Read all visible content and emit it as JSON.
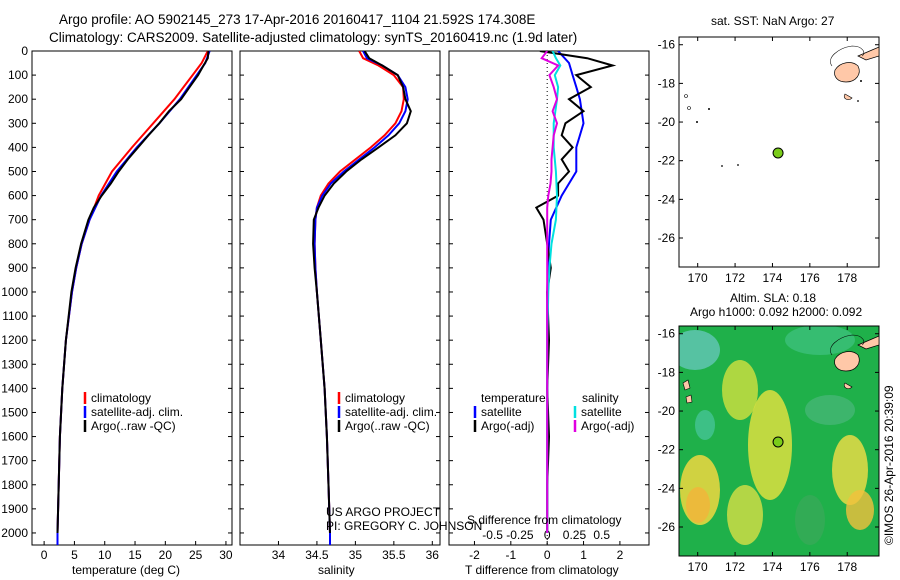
{
  "header": {
    "line1": "Argo profile: AO 5902145_273 17-Apr-2016 20160417_1104 21.592S 174.308E",
    "line2": "Climatology: CARS2009. Satellite-adjusted climatology: synTS_20160419.nc (1.9d later)"
  },
  "colors": {
    "climatology": "#ff0000",
    "satellite": "#0000ff",
    "argo": "#000000",
    "sat_salinity": "#00e0e0",
    "argo_salinity": "#e000e0",
    "float_marker": "#7acc1a",
    "land": "#ffc8a8"
  },
  "chart_data": [
    {
      "type": "line",
      "xlabel": "temperature (deg C)",
      "xlim": [
        -2,
        31
      ],
      "ylim": [
        0,
        2050
      ],
      "x_ticks": [
        "0",
        "5",
        "10",
        "15",
        "20",
        "25",
        "30"
      ],
      "y_ticks": [
        "0",
        "100",
        "200",
        "300",
        "400",
        "500",
        "600",
        "700",
        "800",
        "900",
        "1000",
        "1100",
        "1200",
        "1300",
        "1400",
        "1500",
        "1600",
        "1700",
        "1800",
        "1900",
        "2000"
      ],
      "legend": [
        "climatology",
        "satellite-adj. clim.",
        "Argo(..raw -QC)"
      ],
      "series": [
        {
          "name": "climatology",
          "depth": [
            0,
            50,
            100,
            150,
            200,
            300,
            400,
            500,
            600,
            700,
            800,
            900,
            1000,
            1200,
            1400,
            1600,
            1800,
            2000,
            2050
          ],
          "values": [
            27.0,
            26.0,
            24.5,
            23.0,
            21.5,
            18.0,
            14.5,
            11.2,
            9.0,
            7.5,
            6.2,
            5.3,
            4.6,
            3.6,
            3.0,
            2.6,
            2.4,
            2.2,
            2.2
          ]
        },
        {
          "name": "satellite-adj. clim.",
          "depth": [
            0,
            50,
            100,
            150,
            200,
            300,
            400,
            500,
            600,
            700,
            800,
            900,
            1000,
            1200,
            1400,
            1600,
            1800,
            2000,
            2050
          ],
          "values": [
            27.3,
            26.6,
            25.2,
            23.8,
            22.4,
            19.0,
            15.3,
            12.0,
            9.4,
            7.5,
            6.2,
            5.3,
            4.6,
            3.6,
            3.0,
            2.6,
            2.4,
            2.2,
            2.2
          ]
        },
        {
          "name": "Argo(..raw -QC)",
          "depth": [
            0,
            30,
            60,
            100,
            150,
            200,
            250,
            300,
            350,
            400,
            450,
            500,
            550,
            600,
            650,
            700,
            800,
            900,
            1000,
            1200,
            1400,
            1600,
            1800,
            2000
          ],
          "values": [
            27.1,
            27.0,
            26.3,
            25.4,
            24.0,
            22.6,
            20.6,
            19.0,
            17.2,
            15.5,
            13.8,
            12.3,
            11.0,
            9.5,
            8.2,
            7.3,
            6.1,
            5.2,
            4.5,
            3.6,
            3.0,
            2.6,
            2.4,
            2.2
          ]
        }
      ]
    },
    {
      "type": "line",
      "xlabel": "salinity",
      "xlim": [
        33.5,
        36.1
      ],
      "ylim": [
        0,
        2050
      ],
      "x_ticks": [
        "34",
        "34.5",
        "35",
        "35.5",
        "36"
      ],
      "legend": [
        "climatology",
        "satellite-adj. clim.",
        "Argo(..raw -QC)"
      ],
      "annotation": [
        "US ARGO PROJECT",
        "PI: GREGORY C. JOHNSON"
      ],
      "series": [
        {
          "name": "climatology",
          "depth": [
            0,
            30,
            60,
            100,
            150,
            200,
            250,
            300,
            350,
            400,
            450,
            500,
            550,
            600,
            650,
            700,
            800,
            900,
            1000,
            1200,
            1400,
            1600,
            1800,
            2000,
            2050
          ],
          "values": [
            35.05,
            35.1,
            35.3,
            35.5,
            35.62,
            35.63,
            35.6,
            35.52,
            35.38,
            35.2,
            35.0,
            34.8,
            34.65,
            34.55,
            34.5,
            34.48,
            34.47,
            34.48,
            34.5,
            34.55,
            34.6,
            34.63,
            34.65,
            34.67,
            34.67
          ]
        },
        {
          "name": "satellite-adj. clim.",
          "depth": [
            0,
            30,
            60,
            100,
            150,
            200,
            250,
            300,
            350,
            400,
            450,
            500,
            550,
            600,
            650,
            700,
            800,
            900,
            1000,
            1200,
            1400,
            1600,
            1800,
            2000,
            2050
          ],
          "values": [
            35.1,
            35.15,
            35.35,
            35.55,
            35.65,
            35.68,
            35.65,
            35.57,
            35.43,
            35.25,
            35.05,
            34.85,
            34.68,
            34.57,
            34.5,
            34.48,
            34.47,
            34.48,
            34.5,
            34.55,
            34.6,
            34.63,
            34.65,
            34.67,
            34.67
          ]
        },
        {
          "name": "Argo(..raw -QC)",
          "depth": [
            0,
            30,
            60,
            100,
            150,
            200,
            250,
            300,
            350,
            400,
            450,
            500,
            550,
            600,
            650,
            700,
            800,
            900,
            1000,
            1200,
            1400,
            1600,
            1800,
            2000
          ],
          "values": [
            35.12,
            35.18,
            35.35,
            35.55,
            35.62,
            35.65,
            35.72,
            35.67,
            35.52,
            35.3,
            35.08,
            34.88,
            34.72,
            34.6,
            34.52,
            34.46,
            34.45,
            34.47,
            34.5,
            34.55,
            34.6,
            34.63,
            34.65,
            34.67
          ]
        }
      ]
    },
    {
      "type": "line",
      "xlabel": "T difference from climatology",
      "x2label": "S difference from climatology",
      "xlim": [
        -2.7,
        2.8
      ],
      "ylim": [
        0,
        2050
      ],
      "x_ticks": [
        "-2",
        "-1",
        "0",
        "1",
        "2"
      ],
      "x2_ticks": [
        "-0.5",
        "-0.25",
        "0",
        "0.25",
        "0.5"
      ],
      "legend_t": {
        "title": "temperature",
        "items": [
          "satellite",
          "Argo(-adj)"
        ]
      },
      "legend_s": {
        "title": "salinity",
        "items": [
          "satellite",
          "Argo(-adj)"
        ]
      },
      "series": [
        {
          "name": "T satellite",
          "depth": [
            0,
            50,
            100,
            150,
            200,
            300,
            400,
            500,
            600,
            700,
            800,
            900,
            1000,
            1200,
            1400,
            1600,
            1800,
            2000
          ],
          "values": [
            0.3,
            0.6,
            0.7,
            0.8,
            0.9,
            1.0,
            0.8,
            0.8,
            0.4,
            0.1,
            0.05,
            0.02,
            0.0,
            0.0,
            0.0,
            0.0,
            0.0,
            0.0
          ]
        },
        {
          "name": "T Argo(-adj)",
          "depth": [
            0,
            30,
            60,
            100,
            150,
            200,
            250,
            300,
            350,
            400,
            450,
            500,
            550,
            600,
            650,
            700,
            800,
            900,
            1000,
            1200,
            1400,
            1600,
            1800,
            2000
          ],
          "values": [
            -0.2,
            1.1,
            1.8,
            0.8,
            1.2,
            0.6,
            1.0,
            0.5,
            0.4,
            0.7,
            0.4,
            0.6,
            0.3,
            0.3,
            -0.3,
            -0.1,
            0.0,
            0.1,
            0.0,
            0.05,
            0.0,
            0.05,
            0.0,
            0.0
          ]
        },
        {
          "name": "S satellite",
          "depth": [
            0,
            30,
            60,
            100,
            150,
            200,
            300,
            400,
            500,
            600,
            700,
            800,
            900,
            1000,
            1200,
            1400,
            1600,
            1800,
            2000
          ],
          "values": [
            0.05,
            0.08,
            0.12,
            0.07,
            0.1,
            0.09,
            0.06,
            0.06,
            0.08,
            0.09,
            0.08,
            0.04,
            0.02,
            0.01,
            0.0,
            0.0,
            0.0,
            0.0,
            0.0
          ]
        },
        {
          "name": "S Argo(-adj)",
          "depth": [
            0,
            30,
            60,
            100,
            150,
            200,
            250,
            300,
            350,
            400,
            450,
            500,
            550,
            600,
            650,
            700,
            800,
            900,
            1000,
            1200,
            1400,
            1600,
            1800,
            2000
          ],
          "values": [
            0.0,
            -0.05,
            0.1,
            0.02,
            0.06,
            0.09,
            0.05,
            0.09,
            0.06,
            0.05,
            0.04,
            0.04,
            0.03,
            0.01,
            0.0,
            0.0,
            0.0,
            0.0,
            0.0,
            0.0,
            0.0,
            0.0,
            0.0,
            0.0
          ]
        }
      ]
    },
    {
      "type": "scatter",
      "title": "sat. SST: NaN Argo: 27",
      "xlim": [
        169,
        179.7
      ],
      "ylim": [
        -27.5,
        -15.6
      ],
      "x_ticks": [
        "170",
        "172",
        "174",
        "176",
        "178"
      ],
      "y_ticks": [
        "-16",
        "-18",
        "-20",
        "-22",
        "-24",
        "-26"
      ],
      "float": {
        "lon": 174.3,
        "lat": -21.6
      }
    },
    {
      "type": "heatmap",
      "title": [
        "Altim. SLA: 0.18",
        "Argo h1000: 0.092 h2000: 0.092"
      ],
      "xlim": [
        169,
        179.7
      ],
      "ylim": [
        -27.5,
        -15.6
      ],
      "x_ticks": [
        "170",
        "172",
        "174",
        "176",
        "178"
      ],
      "y_ticks": [
        "-16",
        "-18",
        "-20",
        "-22",
        "-24",
        "-26"
      ],
      "float": {
        "lon": 174.3,
        "lat": -21.6
      }
    }
  ],
  "credit": "©IMOS 26-Apr-2016 20:39:09"
}
